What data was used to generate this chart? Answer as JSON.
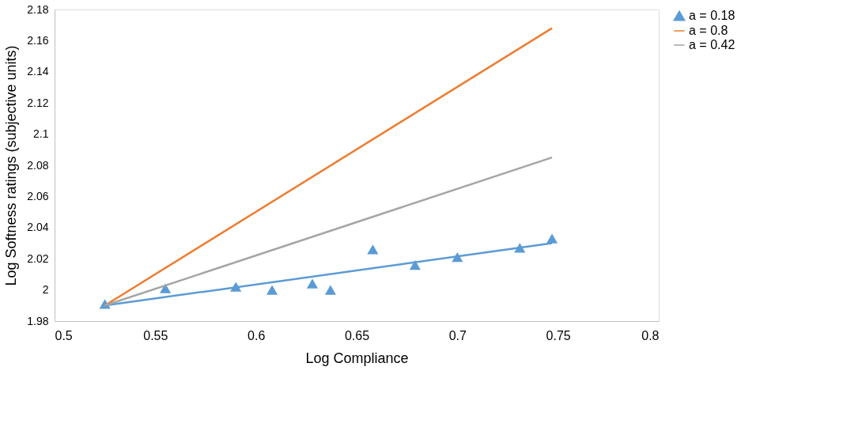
{
  "chart_data": {
    "type": "scatter",
    "xlabel": "Log Compliance",
    "ylabel": "Log Softness ratings (subjective units)",
    "xlim": [
      0.5,
      0.8
    ],
    "xticks": [
      0.5,
      0.55,
      0.6,
      0.65,
      0.7,
      0.75,
      0.8
    ],
    "ylim": [
      1.98,
      2.18
    ],
    "yticks": [
      1.98,
      2,
      2.02,
      2.04,
      2.06,
      2.08,
      2.1,
      2.12,
      2.14,
      2.16,
      2.18
    ],
    "grid": false,
    "legend": "right",
    "line_style": "solid",
    "series": [
      {
        "name": "a = 0.18",
        "marker": "triangle",
        "color": "#5b9bd5",
        "x": [
          0.525,
          0.555,
          0.59,
          0.608,
          0.628,
          0.637,
          0.658,
          0.679,
          0.7,
          0.731,
          0.747
        ],
        "values": [
          1.991,
          2.001,
          2.002,
          2.0,
          2.004,
          2.0,
          2.026,
          2.016,
          2.021,
          2.027,
          2.033
        ]
      },
      {
        "type": "line",
        "marker": "none",
        "color": "#5b9bd5",
        "x": [
          0.525,
          0.747
        ],
        "values": [
          1.99,
          2.03
        ]
      },
      {
        "name": "a = 0.8",
        "type": "line",
        "marker": "none",
        "color": "#ed7d31",
        "x": [
          0.525,
          0.747
        ],
        "values": [
          1.99,
          2.168
        ]
      },
      {
        "name": "a = 0.42",
        "type": "line",
        "marker": "none",
        "color": "#a5a5a5",
        "x": [
          0.525,
          0.747
        ],
        "values": [
          1.99,
          2.085
        ]
      }
    ]
  }
}
